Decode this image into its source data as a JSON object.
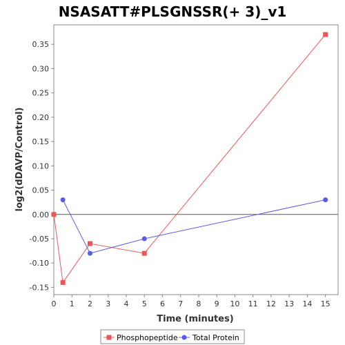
{
  "chart_data": {
    "type": "line",
    "title": "NSASATT#PLSGNSSR(+ 3)_v1",
    "xlabel": "Time (minutes)",
    "ylabel": "log2(dDAVP/Control)",
    "xlim": [
      0,
      15.7
    ],
    "ylim": [
      -0.165,
      0.39
    ],
    "x_ticks": [
      0,
      1,
      2,
      3,
      4,
      5,
      6,
      7,
      8,
      9,
      10,
      11,
      12,
      13,
      14,
      15
    ],
    "y_ticks": [
      -0.15,
      -0.1,
      -0.05,
      0.0,
      0.05,
      0.1,
      0.15,
      0.2,
      0.25,
      0.3,
      0.35
    ],
    "y_tick_labels": [
      "-0.15",
      "-0.10",
      "-0.05",
      "0.00",
      "0.05",
      "0.10",
      "0.15",
      "0.20",
      "0.25",
      "0.30",
      "0.35"
    ],
    "zero_line": true,
    "grid": false,
    "legend_position": "bottom",
    "series": [
      {
        "name": "Phosphopeptide",
        "color": "#e8585a",
        "marker": "square",
        "x": [
          0,
          0.5,
          2,
          5,
          15
        ],
        "values": [
          0.0,
          -0.14,
          -0.06,
          -0.08,
          0.37
        ]
      },
      {
        "name": "Total Protein",
        "color": "#5a5ae8",
        "marker": "circle",
        "x": [
          0.5,
          2,
          5,
          15
        ],
        "values": [
          0.03,
          -0.08,
          -0.05,
          0.03
        ]
      }
    ]
  }
}
